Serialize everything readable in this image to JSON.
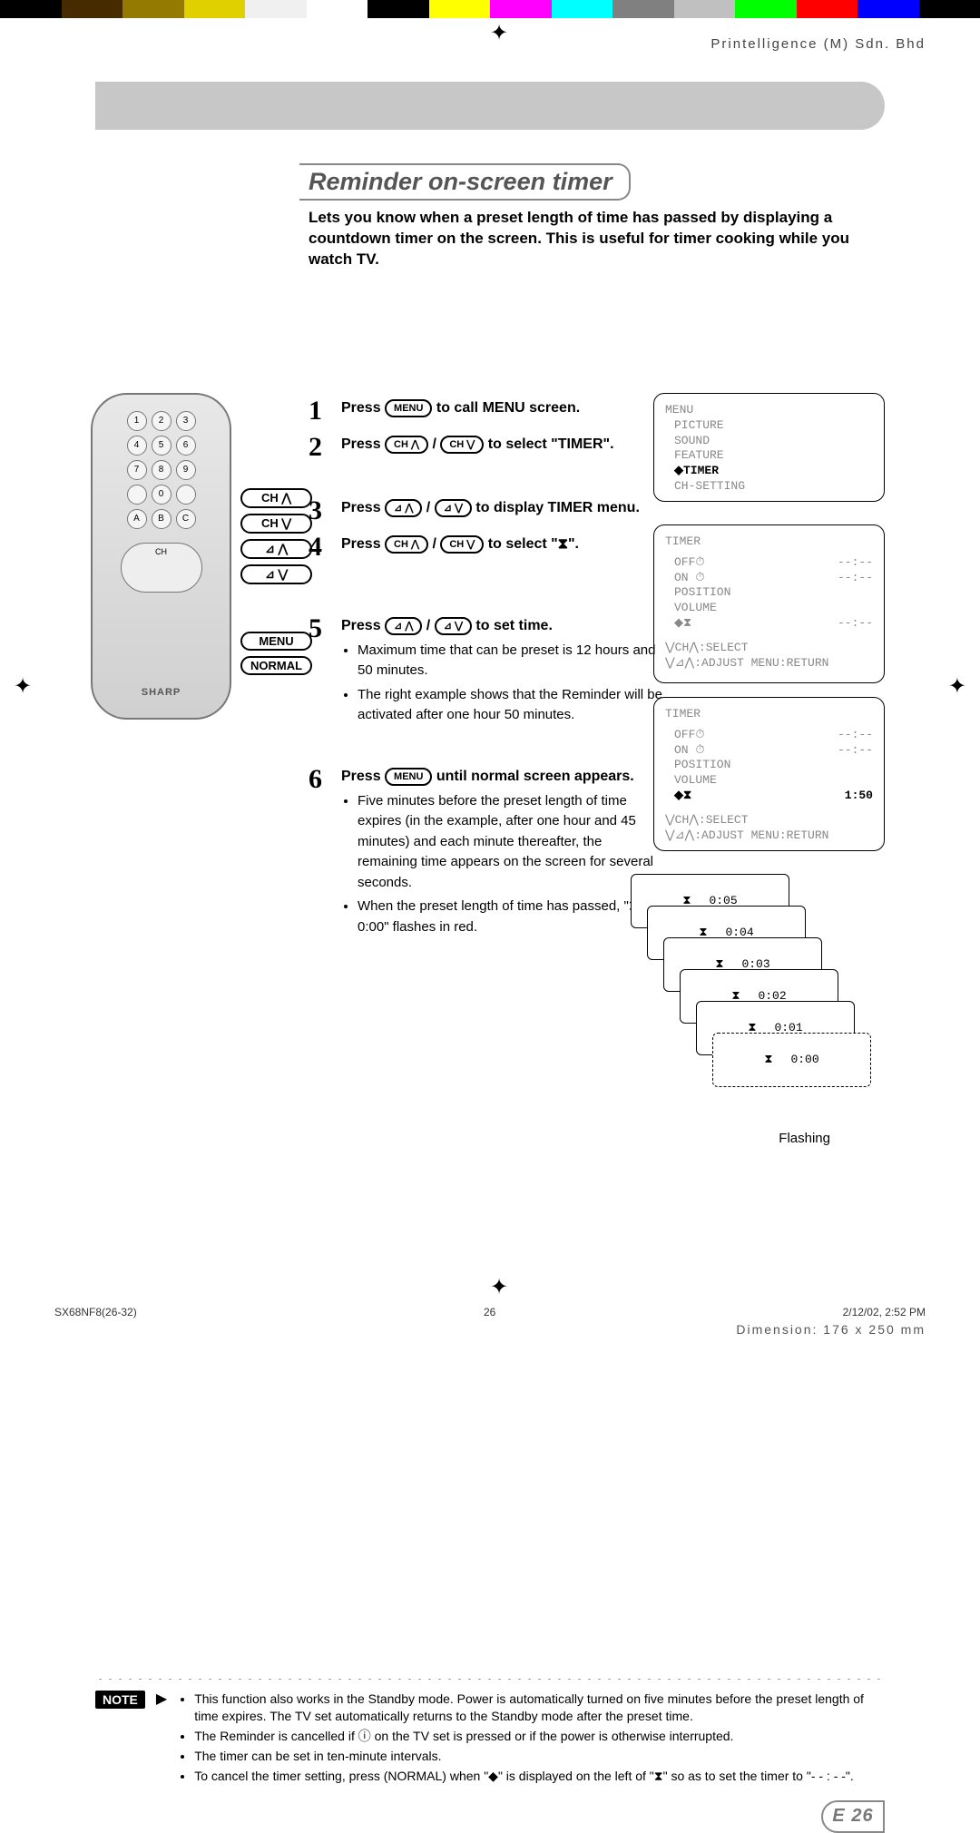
{
  "colorbar_top": [
    "#000000",
    "#462a00",
    "#947a00",
    "#e0d000",
    "#f0f0f0",
    "#ffffff",
    "#000000",
    "#ffff00",
    "#ff00ff",
    "#00ffff",
    "#808080",
    "#c0c0c0",
    "#00ff00",
    "#ff0000",
    "#0000ff",
    "#000000"
  ],
  "company": "Printelligence (M) Sdn. Bhd",
  "section_title": "Reminder on-screen timer",
  "intro": "Lets you know when a preset length of time has passed by displaying a countdown timer on the screen. This is useful for timer cooking while you watch TV.",
  "remote_brand": "SHARP",
  "side_labels": [
    "CH ⋀",
    "CH ⋁",
    "⊿ ⋀",
    "⊿ ⋁",
    "MENU",
    "NORMAL"
  ],
  "steps": {
    "s1": {
      "n": "1",
      "pre": "Press ",
      "btn": "MENU",
      "post": " to call MENU screen."
    },
    "s2": {
      "n": "2",
      "pre": "Press ",
      "btn1": "CH ⋀",
      "mid": " / ",
      "btn2": "CH ⋁",
      "post": " to select \"TIMER\"."
    },
    "s3": {
      "n": "3",
      "pre": "Press ",
      "btn1": "⊿ ⋀",
      "mid": " / ",
      "btn2": "⊿ ⋁",
      "post": " to display TIMER menu."
    },
    "s4": {
      "n": "4",
      "pre": "Press ",
      "btn1": "CH ⋀",
      "mid": " / ",
      "btn2": "CH ⋁",
      "post": " to select \"⧗\"."
    },
    "s5": {
      "n": "5",
      "pre": "Press ",
      "btn1": "⊿ ⋀",
      "mid": " / ",
      "btn2": "⊿ ⋁",
      "post": " to set time.",
      "bullets": [
        "Maximum time that can be preset is 12 hours and 50 minutes.",
        "The right example shows that the Reminder will be activated after one hour 50 minutes."
      ]
    },
    "s6": {
      "n": "6",
      "pre": "Press ",
      "btn": "MENU",
      "post": " until normal screen appears.",
      "bullets": [
        "Five minutes before the preset length of time expires (in the example, after one hour and 45 minutes) and each minute thereafter, the remaining time appears on the screen for several seconds.",
        "When the preset length of time has passed, \"⧗ 0:00\" flashes in red."
      ]
    }
  },
  "osd": {
    "menu": {
      "title": "MENU",
      "items": [
        "PICTURE",
        "SOUND",
        "FEATURE",
        "TIMER",
        "CH-SETTING"
      ],
      "selected_index": 3
    },
    "timer1": {
      "title": "TIMER",
      "rows": [
        [
          "OFF⏱",
          "--:--"
        ],
        [
          "ON ⏱",
          "--:--"
        ],
        [
          " POSITION",
          ""
        ],
        [
          " VOLUME",
          ""
        ],
        [
          "◆⧗",
          "--:--"
        ]
      ],
      "hint1": "⋁CH⋀:SELECT",
      "hint2": "⋁⊿⋀:ADJUST  MENU:RETURN"
    },
    "timer2": {
      "title": "TIMER",
      "rows": [
        [
          "OFF⏱",
          "--:--"
        ],
        [
          "ON ⏱",
          "--:--"
        ],
        [
          " POSITION",
          ""
        ],
        [
          " VOLUME",
          ""
        ],
        [
          "◆⧗",
          "1:50"
        ]
      ],
      "hint1": "⋁CH⋀:SELECT",
      "hint2": "⋁⊿⋀:ADJUST  MENU:RETURN",
      "bold_row_index": 4
    },
    "countdown": [
      "0:05",
      "0:04",
      "0:03",
      "0:02",
      "0:01",
      "0:00"
    ],
    "flashing": "Flashing"
  },
  "note_label": "NOTE",
  "notes": [
    "This function also works in the Standby mode. Power is automatically turned on five minutes before the preset length of time expires. The TV set automatically returns to the Standby mode after the preset time.",
    "The Reminder is cancelled if ⓘ on the TV set is pressed or if the power is otherwise interrupted.",
    "The timer can be set in ten-minute intervals.",
    "To cancel the timer setting, press (NORMAL) when \"◆\" is displayed on the left of \"⧗\" so as to set the timer to \"- - : - -\"."
  ],
  "page_number": "E 26",
  "footer": {
    "doc": "SX68NF8(26-32)",
    "page": "26",
    "date": "2/12/02, 2:52 PM",
    "dim": "Dimension: 176 x 250 mm"
  }
}
